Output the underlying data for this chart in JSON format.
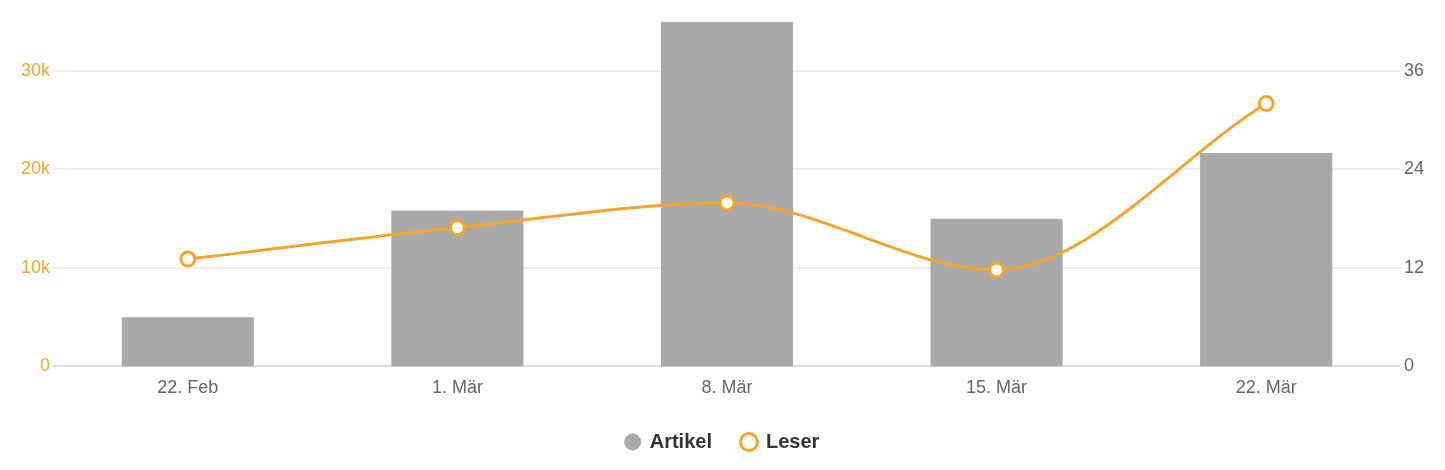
{
  "chart_data": {
    "type": "bar",
    "categories": [
      "22. Feb",
      "1. Mär",
      "8. Mär",
      "15. Mär",
      "22. Mär"
    ],
    "series": [
      {
        "name": "Artikel",
        "axis": "y2",
        "color": "#a9a9a9",
        "values": [
          6,
          19,
          42,
          18,
          26
        ]
      },
      {
        "name": "Leser",
        "type": "line",
        "axis": "y",
        "color": "#f5a52f",
        "values": [
          10900,
          14100,
          16600,
          9800,
          26700
        ],
        "marker": "circle"
      }
    ],
    "ylim": [
      0,
      35000
    ],
    "yticks": [
      0,
      {
        "value": 10000,
        "label": "10k"
      },
      {
        "value": 20000,
        "label": "20k"
      },
      {
        "value": 30000,
        "label": "30k"
      }
    ],
    "y2lim": [
      0,
      42
    ],
    "y2ticks": [
      0,
      12,
      24,
      36
    ],
    "grid": "y",
    "legend": "bottom"
  }
}
